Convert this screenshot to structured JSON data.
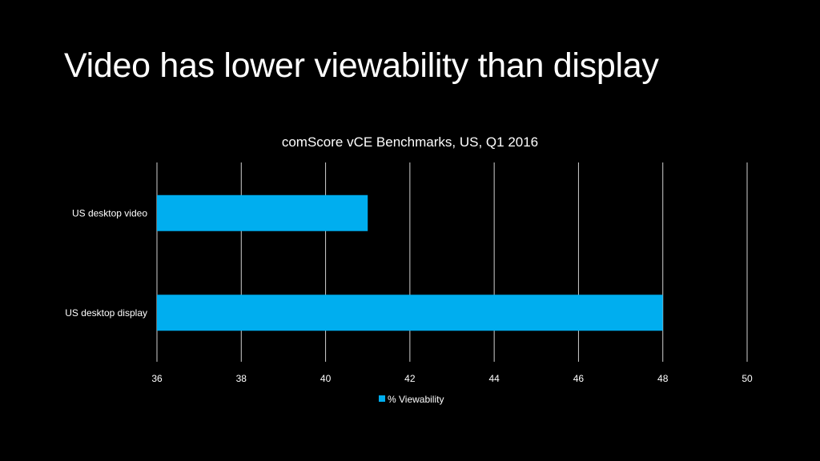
{
  "slide": {
    "title": "Video has lower viewability than display"
  },
  "colors": {
    "background": "#000000",
    "bar": "#00aeef",
    "gridline": "#d0d0d0",
    "text": "#ffffff"
  },
  "chart_data": {
    "type": "bar",
    "orientation": "horizontal",
    "title": "comScore vCE Benchmarks, US, Q1 2016",
    "categories": [
      "US desktop video",
      "US desktop display"
    ],
    "series": [
      {
        "name": "% Viewability",
        "values": [
          41,
          48
        ]
      }
    ],
    "xlim": [
      36,
      50
    ],
    "xticks": [
      36,
      38,
      40,
      42,
      44,
      46,
      48,
      50
    ],
    "xlabel": "",
    "ylabel": "",
    "grid": true,
    "legend": "bottom"
  }
}
